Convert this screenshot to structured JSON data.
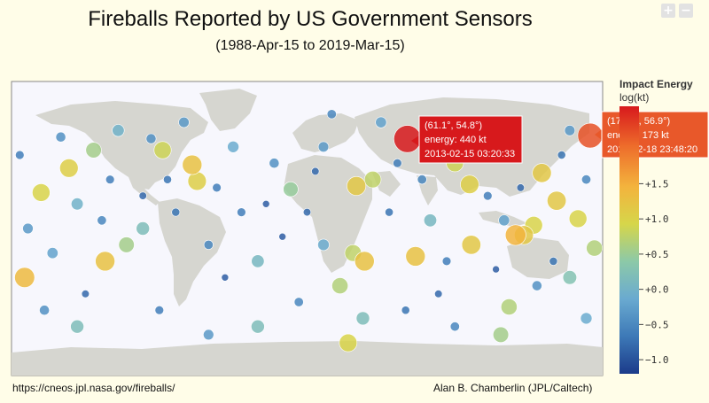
{
  "title": "Fireballs Reported by US Government Sensors",
  "subtitle": "(1988-Apr-15 to 2019-Mar-15)",
  "zoom": {
    "in_label": "+",
    "out_label": "−"
  },
  "footer": {
    "left": "https://cneos.jpl.nasa.gov/fireballs/",
    "right": "Alan B. Chamberlin (JPL/Caltech)"
  },
  "colorbar": {
    "title": "Impact Energy",
    "subtitle": "log(kt)",
    "ticks": [
      {
        "label": "+1.5",
        "value": 1.5
      },
      {
        "label": "+1.0",
        "value": 1.0
      },
      {
        "label": "+0.5",
        "value": 0.5
      },
      {
        "label": "+0.0",
        "value": 0.0
      },
      {
        "label": "−0.5",
        "value": -0.5
      },
      {
        "label": "−1.0",
        "value": -1.0
      }
    ],
    "range": [
      -1.2,
      2.6
    ],
    "colors": [
      "#1b3b8a",
      "#3d79b7",
      "#6aaad0",
      "#8cc9a8",
      "#d6d64a",
      "#f3b33d",
      "#ee6d2b",
      "#d7191c"
    ]
  },
  "tooltips": [
    {
      "line1": "(61.1°, 54.8°)",
      "line2": "energy: 440 kt",
      "line3": "2013-02-15 03:20:33",
      "color": "#d7191c"
    },
    {
      "line1": "(172.4°, 56.9°)",
      "line2": "energy: 173 kt",
      "line3": "2018-12-18 23:48:20",
      "color": "#e8582a"
    }
  ],
  "chart_data": {
    "type": "scatter",
    "projection": "equirectangular",
    "x_label": "",
    "y_label": "",
    "xlim": [
      -180,
      180
    ],
    "ylim": [
      -90,
      90
    ],
    "points": [
      {
        "lon": 61.1,
        "lat": 54.8,
        "energy_log": 2.64
      },
      {
        "lon": 172.4,
        "lat": 56.9,
        "energy_log": 2.24
      },
      {
        "lon": -162,
        "lat": 22,
        "energy_log": 1.0
      },
      {
        "lon": -172,
        "lat": -30,
        "energy_log": 1.4
      },
      {
        "lon": -145,
        "lat": 37,
        "energy_log": 1.1
      },
      {
        "lon": -88,
        "lat": 48,
        "energy_log": 0.9
      },
      {
        "lon": -130,
        "lat": 48,
        "energy_log": 0.6
      },
      {
        "lon": -110,
        "lat": -10,
        "energy_log": 0.6
      },
      {
        "lon": -70,
        "lat": 39,
        "energy_log": 1.3
      },
      {
        "lon": -67,
        "lat": 29,
        "energy_log": 1.1
      },
      {
        "lon": 30,
        "lat": 26,
        "energy_log": 1.2
      },
      {
        "lon": 40,
        "lat": 30,
        "energy_log": 0.8
      },
      {
        "lon": 99,
        "lat": 27,
        "energy_log": 1.1
      },
      {
        "lon": 90,
        "lat": 40,
        "energy_log": 0.9
      },
      {
        "lon": 143,
        "lat": 34,
        "energy_log": 1.2
      },
      {
        "lon": 138,
        "lat": 2,
        "energy_log": 1.0
      },
      {
        "lon": 152,
        "lat": 17,
        "energy_log": 1.2
      },
      {
        "lon": 165,
        "lat": 6,
        "energy_log": 1.0
      },
      {
        "lon": 175,
        "lat": -12,
        "energy_log": 0.7
      },
      {
        "lon": 127,
        "lat": -4,
        "energy_log": 1.5
      },
      {
        "lon": 132,
        "lat": -4,
        "energy_log": 1.2
      },
      {
        "lon": 100,
        "lat": -10,
        "energy_log": 1.2
      },
      {
        "lon": 35,
        "lat": -20,
        "energy_log": 1.3
      },
      {
        "lon": 28,
        "lat": -15,
        "energy_log": 0.8
      },
      {
        "lon": 66,
        "lat": -17,
        "energy_log": 1.3
      },
      {
        "lon": -123,
        "lat": -20,
        "energy_log": 1.3
      },
      {
        "lon": -10,
        "lat": 24,
        "energy_log": 0.5
      },
      {
        "lon": 20,
        "lat": -35,
        "energy_log": 0.7
      },
      {
        "lon": 123,
        "lat": -48,
        "energy_log": 0.7
      },
      {
        "lon": 34,
        "lat": -55,
        "energy_log": 0.2
      },
      {
        "lon": 25,
        "lat": -70,
        "energy_log": 1.0
      },
      {
        "lon": 118,
        "lat": -65,
        "energy_log": 0.6
      },
      {
        "lon": -140,
        "lat": -60,
        "energy_log": 0.2
      },
      {
        "lon": -30,
        "lat": -60,
        "energy_log": 0.2
      },
      {
        "lon": 160,
        "lat": -30,
        "energy_log": 0.3
      },
      {
        "lon": -150,
        "lat": 56,
        "energy_log": -0.4
      },
      {
        "lon": -120,
        "lat": 30,
        "energy_log": -0.6
      },
      {
        "lon": -100,
        "lat": 20,
        "energy_log": -0.8
      },
      {
        "lon": -80,
        "lat": 10,
        "energy_log": -0.7
      },
      {
        "lon": -60,
        "lat": -10,
        "energy_log": -0.5
      },
      {
        "lon": -50,
        "lat": -30,
        "energy_log": -0.9
      },
      {
        "lon": -40,
        "lat": 10,
        "energy_log": -0.6
      },
      {
        "lon": -20,
        "lat": 40,
        "energy_log": -0.4
      },
      {
        "lon": 0,
        "lat": 10,
        "energy_log": -0.8
      },
      {
        "lon": 10,
        "lat": 50,
        "energy_log": -0.3
      },
      {
        "lon": 50,
        "lat": 10,
        "energy_log": -0.7
      },
      {
        "lon": 70,
        "lat": 30,
        "energy_log": -0.5
      },
      {
        "lon": 80,
        "lat": -40,
        "energy_log": -0.8
      },
      {
        "lon": 110,
        "lat": 20,
        "energy_log": -0.6
      },
      {
        "lon": 120,
        "lat": 50,
        "energy_log": -0.4
      },
      {
        "lon": 150,
        "lat": -20,
        "energy_log": -0.7
      },
      {
        "lon": 170,
        "lat": 30,
        "energy_log": -0.5
      },
      {
        "lon": -170,
        "lat": 0,
        "energy_log": -0.3
      },
      {
        "lon": -135,
        "lat": -40,
        "energy_log": -0.8
      },
      {
        "lon": -90,
        "lat": -50,
        "energy_log": -0.6
      },
      {
        "lon": -5,
        "lat": -45,
        "energy_log": -0.5
      },
      {
        "lon": 60,
        "lat": -50,
        "energy_log": -0.7
      },
      {
        "lon": 140,
        "lat": -35,
        "energy_log": -0.4
      },
      {
        "lon": -175,
        "lat": 45,
        "energy_log": -0.6
      },
      {
        "lon": -155,
        "lat": -15,
        "energy_log": -0.2
      },
      {
        "lon": -115,
        "lat": 60,
        "energy_log": 0.0
      },
      {
        "lon": -75,
        "lat": 65,
        "energy_log": -0.3
      },
      {
        "lon": -45,
        "lat": 50,
        "energy_log": -0.1
      },
      {
        "lon": 15,
        "lat": 70,
        "energy_log": -0.5
      },
      {
        "lon": 45,
        "lat": 65,
        "energy_log": -0.2
      },
      {
        "lon": 100,
        "lat": 65,
        "energy_log": -0.4
      },
      {
        "lon": 160,
        "lat": 60,
        "energy_log": -0.3
      },
      {
        "lon": -140,
        "lat": 15,
        "energy_log": 0.0
      },
      {
        "lon": -100,
        "lat": 0,
        "energy_log": 0.2
      },
      {
        "lon": -30,
        "lat": -20,
        "energy_log": 0.1
      },
      {
        "lon": 10,
        "lat": -10,
        "energy_log": -0.1
      },
      {
        "lon": 75,
        "lat": 5,
        "energy_log": 0.1
      },
      {
        "lon": 120,
        "lat": 5,
        "energy_log": -0.2
      },
      {
        "lon": -160,
        "lat": -50,
        "energy_log": -0.4
      },
      {
        "lon": -60,
        "lat": -65,
        "energy_log": -0.3
      },
      {
        "lon": 90,
        "lat": -60,
        "energy_log": -0.5
      },
      {
        "lon": 170,
        "lat": -55,
        "energy_log": -0.1
      },
      {
        "lon": -85,
        "lat": 30,
        "energy_log": -0.7
      },
      {
        "lon": -25,
        "lat": 15,
        "energy_log": -0.9
      },
      {
        "lon": 55,
        "lat": 40,
        "energy_log": -0.6
      },
      {
        "lon": 130,
        "lat": 25,
        "energy_log": -0.8
      },
      {
        "lon": -125,
        "lat": 5,
        "energy_log": -0.5
      },
      {
        "lon": -15,
        "lat": -5,
        "energy_log": -0.9
      },
      {
        "lon": 85,
        "lat": -20,
        "energy_log": -0.6
      },
      {
        "lon": 155,
        "lat": 45,
        "energy_log": -0.7
      },
      {
        "lon": -95,
        "lat": 55,
        "energy_log": -0.4
      },
      {
        "lon": 5,
        "lat": 35,
        "energy_log": -0.8
      },
      {
        "lon": -55,
        "lat": 25,
        "energy_log": -0.6
      },
      {
        "lon": 115,
        "lat": -25,
        "energy_log": -0.9
      }
    ]
  }
}
